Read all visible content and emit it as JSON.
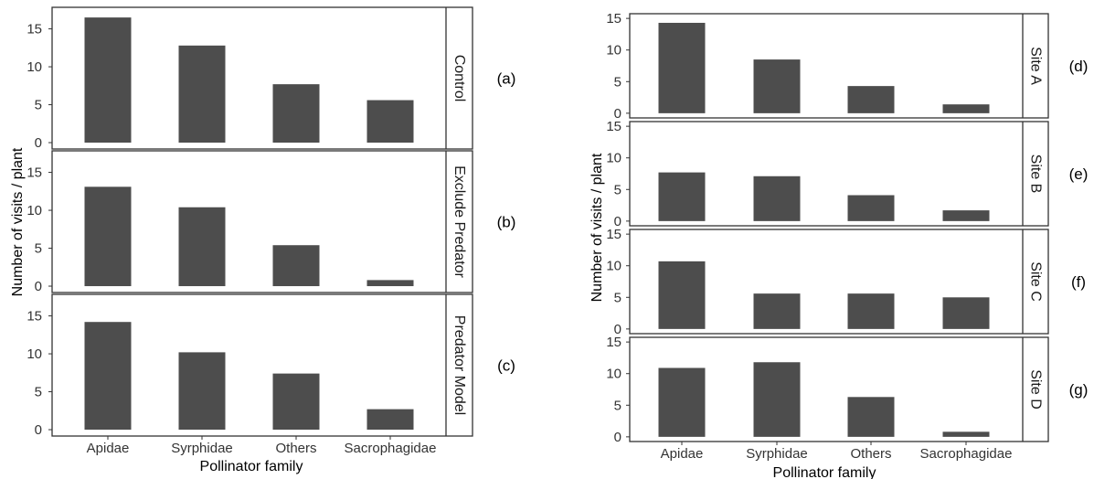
{
  "chart_data": [
    {
      "type": "bar",
      "facet": "left",
      "xlabel": "Pollinator family",
      "ylabel": "Number of visits / plant",
      "categories": [
        "Apidae",
        "Syrphidae",
        "Others",
        "Sacrophagidae"
      ],
      "panels": [
        {
          "strip": "Control",
          "tag": "(a)",
          "values": [
            16.5,
            12.8,
            7.7,
            5.6
          ],
          "ylim": [
            0,
            17
          ],
          "yticks": [
            "0",
            "5",
            "10",
            "15"
          ]
        },
        {
          "strip": "Exclude Predator",
          "tag": "(b)",
          "values": [
            13.1,
            10.4,
            5.4,
            0.8
          ],
          "ylim": [
            0,
            17
          ],
          "yticks": [
            "0",
            "5",
            "10",
            "15"
          ]
        },
        {
          "strip": "Predator Model",
          "tag": "(c)",
          "values": [
            14.2,
            10.2,
            7.4,
            2.7
          ],
          "ylim": [
            0,
            17
          ],
          "yticks": [
            "0",
            "5",
            "10",
            "15"
          ]
        }
      ]
    },
    {
      "type": "bar",
      "facet": "right",
      "xlabel": "Pollinator family",
      "ylabel": "Number of visits / plant",
      "categories": [
        "Apidae",
        "Syrphidae",
        "Others",
        "Sacrophagidae"
      ],
      "panels": [
        {
          "strip": "Site A",
          "tag": "(d)",
          "values": [
            14.3,
            8.5,
            4.3,
            1.4
          ],
          "ylim": [
            0,
            15
          ],
          "yticks": [
            "0",
            "5",
            "10",
            "15"
          ]
        },
        {
          "strip": "Site B",
          "tag": "(e)",
          "values": [
            7.7,
            7.1,
            4.1,
            1.7
          ],
          "ylim": [
            0,
            15
          ],
          "yticks": [
            "0",
            "5",
            "10",
            "15"
          ]
        },
        {
          "strip": "Site C",
          "tag": "(f)",
          "values": [
            10.7,
            5.6,
            5.6,
            5.0
          ],
          "ylim": [
            0,
            15
          ],
          "yticks": [
            "0",
            "5",
            "10",
            "15"
          ]
        },
        {
          "strip": "Site D",
          "tag": "(g)",
          "values": [
            10.9,
            11.8,
            6.3,
            0.8
          ],
          "ylim": [
            0,
            15
          ],
          "yticks": [
            "0",
            "5",
            "10",
            "15"
          ]
        }
      ]
    }
  ],
  "style": {
    "bar_color": "#4d4d4d",
    "frame_color": "#333333",
    "text_color": "#000000"
  }
}
